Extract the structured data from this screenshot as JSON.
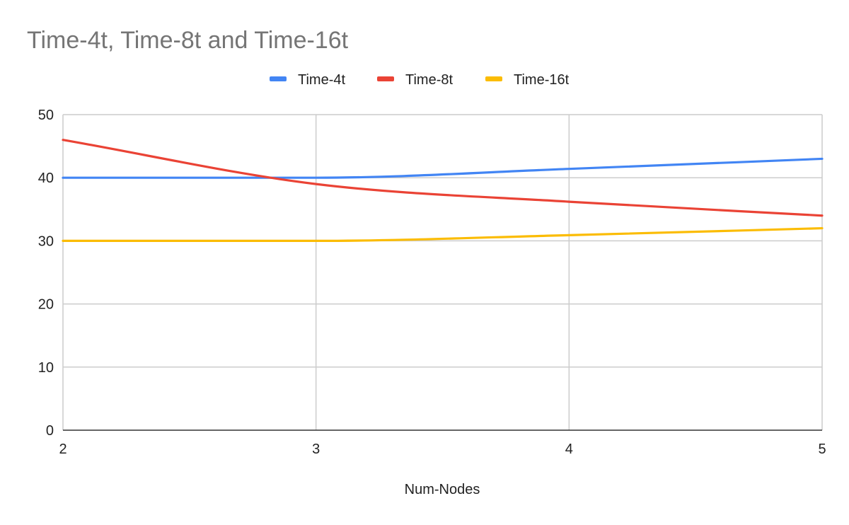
{
  "chart_data": {
    "type": "line",
    "title": "Time-4t, Time-8t and Time-16t",
    "xlabel": "Num-Nodes",
    "ylabel": "",
    "x": [
      2,
      3,
      4,
      5
    ],
    "x_ticks": [
      "2",
      "3",
      "4",
      "5"
    ],
    "xlim": [
      2,
      5
    ],
    "ylim": [
      0,
      50
    ],
    "y_ticks": [
      "0",
      "10",
      "20",
      "30",
      "40",
      "50"
    ],
    "grid": true,
    "legend_position": "top",
    "series": [
      {
        "name": "Time-4t",
        "color": "#4285f4",
        "values": [
          40,
          40,
          41.4,
          43
        ]
      },
      {
        "name": "Time-8t",
        "color": "#ea4335",
        "values": [
          46,
          39,
          36.2,
          34
        ]
      },
      {
        "name": "Time-16t",
        "color": "#fbbc04",
        "values": [
          30,
          30,
          30.9,
          32
        ]
      }
    ]
  }
}
